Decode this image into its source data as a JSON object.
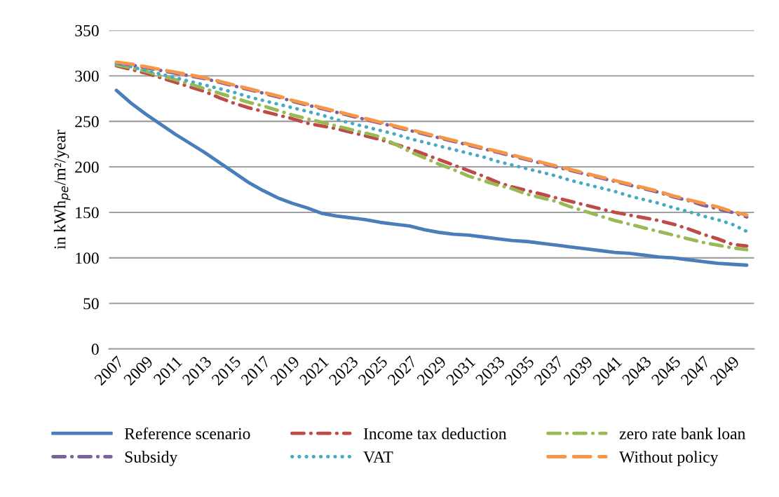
{
  "chart_data": {
    "type": "line",
    "ylabel": "in kWh$_{pe}$/m²/year",
    "categories": [
      "2007",
      null,
      "2009",
      null,
      "2011",
      null,
      "2013",
      null,
      "2015",
      null,
      "2017",
      null,
      "2019",
      null,
      "2021",
      null,
      "2023",
      null,
      "2025",
      null,
      "2027",
      null,
      "2029",
      null,
      "2031",
      null,
      "2033",
      null,
      "2035",
      null,
      "2037",
      null,
      "2039",
      null,
      "2041",
      null,
      "2043",
      null,
      "2045",
      null,
      "2047",
      null,
      "2049",
      null
    ],
    "ylim": [
      0,
      350
    ],
    "yticks": [
      0,
      50,
      100,
      150,
      200,
      250,
      300,
      350
    ],
    "grid": "y",
    "legend": "bottom",
    "series": [
      {
        "name": "Reference scenario",
        "color": "#4a7ebb",
        "line_style": "solid",
        "values": [
          284,
          270,
          258,
          247,
          236,
          226,
          216,
          205,
          194,
          183,
          174,
          166,
          160,
          155,
          149,
          146,
          144,
          142,
          139,
          137,
          135,
          131,
          128,
          126,
          125,
          123,
          121,
          119,
          118,
          116,
          114,
          112,
          110,
          108,
          106,
          105,
          103,
          101,
          100,
          98,
          96,
          94,
          93,
          92
        ]
      },
      {
        "name": "Income tax deduction",
        "color": "#be4b48",
        "line_style": "dashdot",
        "values": [
          311,
          307,
          303,
          298,
          293,
          288,
          283,
          276,
          270,
          265,
          261,
          257,
          253,
          248,
          245,
          242,
          238,
          234,
          230,
          225,
          220,
          214,
          208,
          202,
          196,
          190,
          183,
          178,
          174,
          170,
          166,
          162,
          158,
          154,
          150,
          147,
          144,
          141,
          137,
          132,
          126,
          121,
          115,
          113
        ]
      },
      {
        "name": "zero rate bank loan",
        "color": "#98b954",
        "line_style": "dashdot",
        "values": [
          312,
          309,
          305,
          300,
          296,
          291,
          286,
          281,
          276,
          271,
          267,
          262,
          257,
          253,
          249,
          245,
          241,
          237,
          233,
          225,
          217,
          210,
          203,
          197,
          190,
          185,
          180,
          176,
          170,
          166,
          162,
          156,
          151,
          146,
          141,
          137,
          133,
          129,
          125,
          121,
          117,
          114,
          111,
          109
        ]
      },
      {
        "name": "Subsidy",
        "color": "#7d60a0",
        "line_style": "dashdot",
        "values": [
          314,
          312,
          309,
          306,
          303,
          300,
          297,
          293,
          289,
          285,
          281,
          277,
          272,
          268,
          264,
          260,
          256,
          252,
          248,
          244,
          240,
          236,
          232,
          228,
          224,
          220,
          216,
          212,
          208,
          204,
          200,
          196,
          192,
          188,
          184,
          180,
          176,
          172,
          167,
          163,
          158,
          154,
          150,
          145
        ]
      },
      {
        "name": "VAT",
        "color": "#46aac5",
        "line_style": "dotted",
        "values": [
          313,
          310,
          306,
          302,
          298,
          294,
          290,
          286,
          282,
          277,
          273,
          269,
          265,
          261,
          257,
          252,
          248,
          244,
          240,
          236,
          231,
          227,
          223,
          219,
          215,
          211,
          206,
          202,
          198,
          194,
          190,
          185,
          181,
          177,
          173,
          168,
          164,
          160,
          155,
          151,
          146,
          142,
          137,
          129
        ]
      },
      {
        "name": "Without policy",
        "color": "#f79646",
        "line_style": "dashed",
        "values": [
          315,
          313,
          310,
          307,
          304,
          301,
          298,
          294,
          290,
          286,
          282,
          278,
          273,
          269,
          265,
          261,
          257,
          253,
          249,
          245,
          241,
          237,
          233,
          229,
          225,
          221,
          217,
          213,
          209,
          205,
          201,
          197,
          193,
          189,
          185,
          181,
          177,
          173,
          168,
          164,
          160,
          156,
          151,
          147
        ]
      }
    ]
  }
}
